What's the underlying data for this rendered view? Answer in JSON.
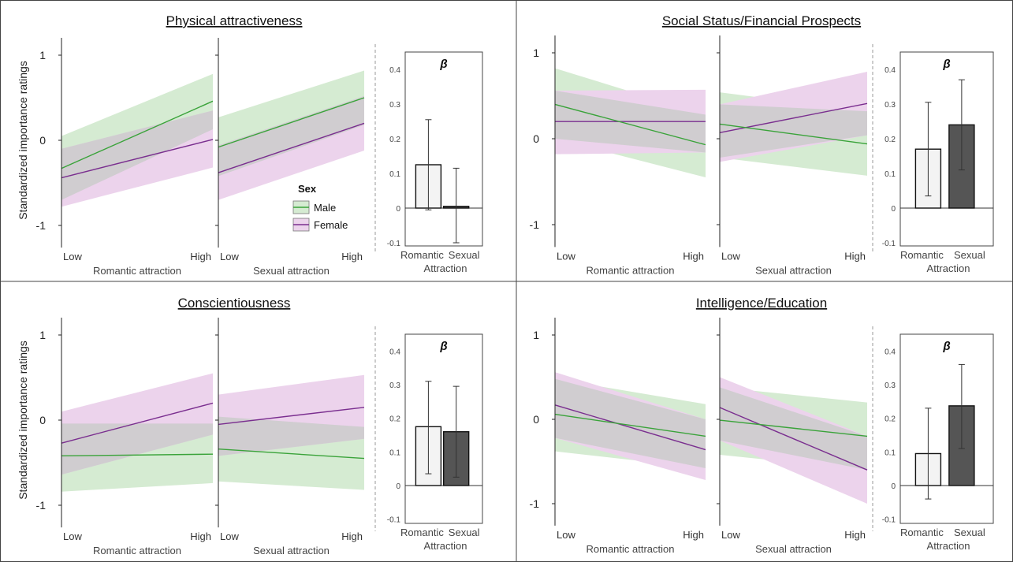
{
  "figure": {
    "ylabel": "Standardized importance ratings",
    "legend": {
      "title": "Sex",
      "entries": [
        {
          "label": "Male",
          "color": "#3aa33a",
          "band": "#d5ebd2"
        },
        {
          "label": "Female",
          "color": "#7a2e8f",
          "band": "#ecd3ec"
        }
      ],
      "overlap_color": "#cbcbcb"
    },
    "line_xticks": [
      "Low",
      "High"
    ],
    "line_yticks": [
      "1",
      "0",
      "-1"
    ],
    "bar_yticks": [
      "0.4",
      "0.3",
      "0.2",
      "0.1",
      "0",
      "-0.1"
    ],
    "bar_xticks": [
      "Romantic",
      "Sexual"
    ],
    "bar_xlabel": "Attraction",
    "bar_title": "β",
    "bar_colors": {
      "Romantic": "#f3f3f3",
      "Sexual": "#555555"
    }
  },
  "chart_data": [
    {
      "title": "Physical attractiveness",
      "subplots": [
        {
          "type": "line",
          "xlabel": "Romantic attraction",
          "x": [
            "Low",
            "High"
          ],
          "ylim": [
            -1.2,
            1.2
          ],
          "series": [
            {
              "name": "Male",
              "values": [
                -0.33,
                0.46
              ],
              "ci_low": [
                -0.7,
                0.13
              ],
              "ci_high": [
                0.05,
                0.78
              ]
            },
            {
              "name": "Female",
              "values": [
                -0.44,
                0.01
              ],
              "ci_low": [
                -0.78,
                -0.32
              ],
              "ci_high": [
                -0.1,
                0.35
              ]
            }
          ]
        },
        {
          "type": "line",
          "xlabel": "Sexual attraction",
          "x": [
            "Low",
            "High"
          ],
          "ylim": [
            -1.2,
            1.2
          ],
          "series": [
            {
              "name": "Male",
              "values": [
                -0.08,
                0.5
              ],
              "ci_low": [
                -0.42,
                0.18
              ],
              "ci_high": [
                0.27,
                0.82
              ]
            },
            {
              "name": "Female",
              "values": [
                -0.38,
                0.2
              ],
              "ci_low": [
                -0.7,
                -0.12
              ],
              "ci_high": [
                -0.06,
                0.52
              ]
            }
          ]
        },
        {
          "type": "bar",
          "categories": [
            "Romantic",
            "Sexual"
          ],
          "values": [
            0.125,
            0.005
          ],
          "err_low": [
            -0.005,
            -0.1
          ],
          "err_high": [
            0.255,
            0.115
          ],
          "ylim": [
            -0.1,
            0.45
          ]
        }
      ]
    },
    {
      "title": "Social Status/Financial Prospects",
      "subplots": [
        {
          "type": "line",
          "xlabel": "Romantic attraction",
          "x": [
            "Low",
            "High"
          ],
          "ylim": [
            -1.2,
            1.2
          ],
          "series": [
            {
              "name": "Male",
              "values": [
                0.4,
                -0.07
              ],
              "ci_low": [
                0.0,
                -0.45
              ],
              "ci_high": [
                0.82,
                0.28
              ]
            },
            {
              "name": "Female",
              "values": [
                0.2,
                0.2
              ],
              "ci_low": [
                -0.18,
                -0.16
              ],
              "ci_high": [
                0.56,
                0.57
              ]
            }
          ]
        },
        {
          "type": "line",
          "xlabel": "Sexual attraction",
          "x": [
            "Low",
            "High"
          ],
          "ylim": [
            -1.2,
            1.2
          ],
          "series": [
            {
              "name": "Male",
              "values": [
                0.17,
                -0.06
              ],
              "ci_low": [
                -0.22,
                -0.43
              ],
              "ci_high": [
                0.54,
                0.32
              ]
            },
            {
              "name": "Female",
              "values": [
                0.07,
                0.41
              ],
              "ci_low": [
                -0.27,
                0.04
              ],
              "ci_high": [
                0.4,
                0.78
              ]
            }
          ]
        },
        {
          "type": "bar",
          "categories": [
            "Romantic",
            "Sexual"
          ],
          "values": [
            0.17,
            0.24
          ],
          "err_low": [
            0.035,
            0.11
          ],
          "err_high": [
            0.305,
            0.37
          ],
          "ylim": [
            -0.1,
            0.45
          ]
        }
      ]
    },
    {
      "title": "Conscientiousness",
      "subplots": [
        {
          "type": "line",
          "xlabel": "Romantic attraction",
          "x": [
            "Low",
            "High"
          ],
          "ylim": [
            -1.2,
            1.2
          ],
          "series": [
            {
              "name": "Male",
              "values": [
                -0.42,
                -0.4
              ],
              "ci_low": [
                -0.84,
                -0.74
              ],
              "ci_high": [
                -0.04,
                -0.04
              ]
            },
            {
              "name": "Female",
              "values": [
                -0.27,
                0.2
              ],
              "ci_low": [
                -0.64,
                -0.17
              ],
              "ci_high": [
                0.1,
                0.55
              ]
            }
          ]
        },
        {
          "type": "line",
          "xlabel": "Sexual attraction",
          "x": [
            "Low",
            "High"
          ],
          "ylim": [
            -1.2,
            1.2
          ],
          "series": [
            {
              "name": "Male",
              "values": [
                -0.34,
                -0.45
              ],
              "ci_low": [
                -0.72,
                -0.82
              ],
              "ci_high": [
                0.04,
                -0.08
              ]
            },
            {
              "name": "Female",
              "values": [
                -0.05,
                0.15
              ],
              "ci_low": [
                -0.42,
                -0.22
              ],
              "ci_high": [
                0.3,
                0.53
              ]
            }
          ]
        },
        {
          "type": "bar",
          "categories": [
            "Romantic",
            "Sexual"
          ],
          "values": [
            0.175,
            0.16
          ],
          "err_low": [
            0.035,
            0.025
          ],
          "err_high": [
            0.31,
            0.295
          ],
          "ylim": [
            -0.1,
            0.45
          ]
        }
      ]
    },
    {
      "title": "Intelligence/Education",
      "subplots": [
        {
          "type": "line",
          "xlabel": "Romantic attraction",
          "x": [
            "Low",
            "High"
          ],
          "ylim": [
            -1.2,
            1.2
          ],
          "series": [
            {
              "name": "Male",
              "values": [
                0.06,
                -0.2
              ],
              "ci_low": [
                -0.38,
                -0.58
              ],
              "ci_high": [
                0.48,
                0.18
              ]
            },
            {
              "name": "Female",
              "values": [
                0.17,
                -0.36
              ],
              "ci_low": [
                -0.22,
                -0.72
              ],
              "ci_high": [
                0.56,
                0.0
              ]
            }
          ]
        },
        {
          "type": "line",
          "xlabel": "Sexual attraction",
          "x": [
            "Low",
            "High"
          ],
          "ylim": [
            -1.2,
            1.2
          ],
          "series": [
            {
              "name": "Male",
              "values": [
                -0.01,
                -0.2
              ],
              "ci_low": [
                -0.42,
                -0.6
              ],
              "ci_high": [
                0.38,
                0.2
              ]
            },
            {
              "name": "Female",
              "values": [
                0.14,
                -0.6
              ],
              "ci_low": [
                -0.25,
                -1.0
              ],
              "ci_high": [
                0.5,
                -0.2
              ]
            }
          ]
        },
        {
          "type": "bar",
          "categories": [
            "Romantic",
            "Sexual"
          ],
          "values": [
            0.095,
            0.237
          ],
          "err_low": [
            -0.04,
            0.11
          ],
          "err_high": [
            0.23,
            0.36
          ],
          "ylim": [
            -0.1,
            0.45
          ]
        }
      ]
    }
  ]
}
